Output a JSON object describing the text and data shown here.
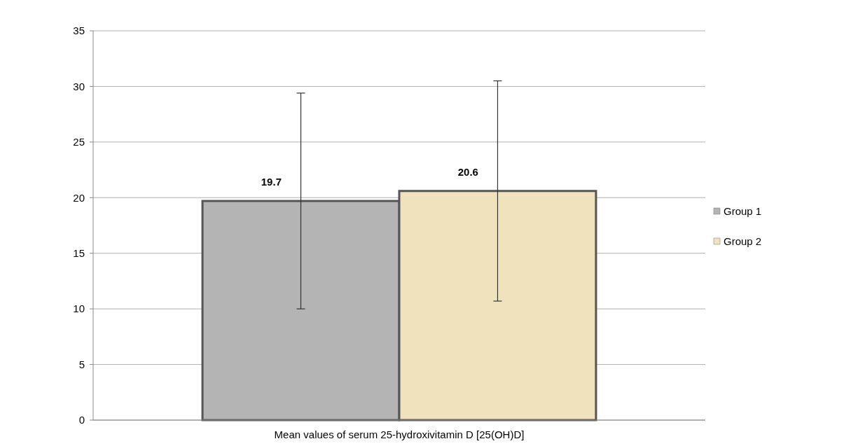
{
  "chart_data": {
    "type": "bar",
    "categories": [
      "Mean values of serum 25-hydroxivitamin D [25(OH)D]"
    ],
    "series": [
      {
        "name": "Group 1",
        "color": "#b4b4b4",
        "values": [
          19.7
        ],
        "errors": [
          9.7
        ]
      },
      {
        "name": "Group 2",
        "color": "#efe2bd",
        "values": [
          20.6
        ],
        "errors": [
          9.9
        ]
      }
    ],
    "ylim": [
      0,
      35
    ],
    "yticks": [
      0,
      5,
      10,
      15,
      20,
      25,
      30,
      35
    ],
    "grid": "y",
    "legend": "right",
    "data_labels": true
  }
}
